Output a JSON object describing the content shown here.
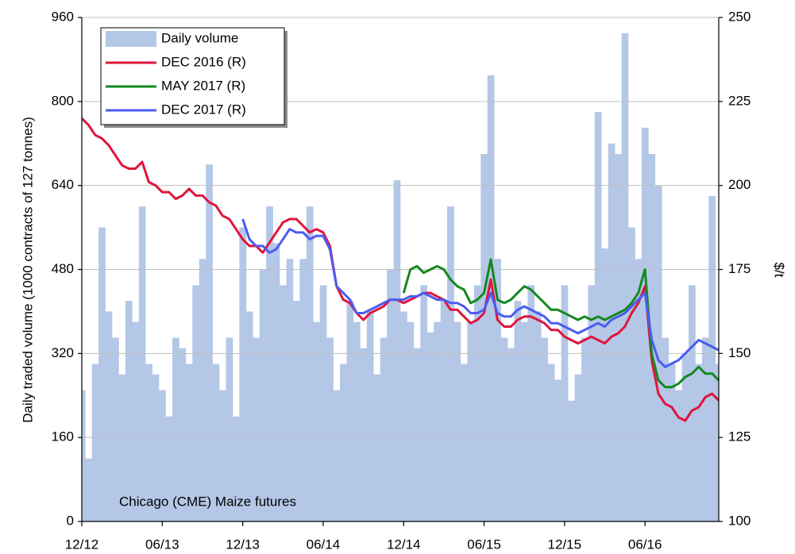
{
  "chart_data": {
    "type": "combo",
    "y_label": "Daily traded volume (1000 contracts of 127 tonnes)",
    "y2_label": "$/t",
    "annotation": "Chicago (CME)  Maize futures",
    "categories": [
      "12/12",
      null,
      null,
      null,
      null,
      null,
      null,
      null,
      null,
      null,
      null,
      null,
      "06/13",
      null,
      null,
      null,
      null,
      null,
      null,
      null,
      null,
      null,
      null,
      null,
      "12/13",
      null,
      null,
      null,
      null,
      null,
      null,
      null,
      null,
      null,
      null,
      null,
      "06/14",
      null,
      null,
      null,
      null,
      null,
      null,
      null,
      null,
      null,
      null,
      null,
      "12/14",
      null,
      null,
      null,
      null,
      null,
      null,
      null,
      null,
      null,
      null,
      null,
      "06/15",
      null,
      null,
      null,
      null,
      null,
      null,
      null,
      null,
      null,
      null,
      null,
      "12/15",
      null,
      null,
      null,
      null,
      null,
      null,
      null,
      null,
      null,
      null,
      null,
      "06/16",
      null,
      null,
      null,
      null,
      null,
      null,
      null,
      null,
      null,
      null,
      null
    ],
    "ylim": [
      0,
      960
    ],
    "yticks": [
      0,
      160,
      320,
      480,
      640,
      800,
      960
    ],
    "y2lim": [
      100,
      250
    ],
    "y2ticks": [
      100,
      125,
      150,
      175,
      200,
      225,
      250
    ],
    "grid": true,
    "legend": "top-left",
    "series": [
      {
        "name": "Daily volume",
        "type": "bar",
        "color": "#b4c7e7",
        "axis": "y",
        "values": [
          250,
          120,
          300,
          560,
          400,
          350,
          280,
          420,
          380,
          600,
          300,
          280,
          250,
          200,
          350,
          330,
          300,
          450,
          500,
          680,
          300,
          250,
          350,
          200,
          560,
          400,
          350,
          480,
          600,
          530,
          450,
          500,
          420,
          500,
          600,
          380,
          450,
          350,
          250,
          300,
          420,
          380,
          330,
          400,
          280,
          350,
          480,
          650,
          400,
          380,
          330,
          450,
          360,
          380,
          420,
          600,
          380,
          300,
          380,
          450,
          700,
          850,
          500,
          350,
          330,
          420,
          380,
          450,
          400,
          350,
          300,
          270,
          450,
          230,
          280,
          350,
          450,
          780,
          520,
          720,
          700,
          930,
          560,
          500,
          750,
          700,
          640,
          350,
          300,
          250,
          320,
          450,
          300,
          350,
          620,
          300
        ]
      },
      {
        "name": "DEC 2016 (R)",
        "type": "line",
        "color": "#e0143c",
        "axis": "y2",
        "values": [
          220,
          218,
          215,
          214,
          212,
          209,
          206,
          205,
          205,
          207,
          201,
          200,
          198,
          198,
          196,
          197,
          199,
          197,
          197,
          195,
          194,
          191,
          190,
          187,
          184,
          182,
          182,
          180,
          183,
          186,
          189,
          190,
          190,
          188,
          186,
          187,
          186,
          182,
          170,
          166,
          165,
          162,
          160,
          162,
          163,
          164,
          166,
          166,
          165,
          166,
          167,
          168,
          168,
          167,
          166,
          163,
          163,
          161,
          159,
          160,
          162,
          172,
          160,
          158,
          158,
          160,
          161,
          161,
          160,
          159,
          157,
          157,
          155,
          154,
          153,
          154,
          155,
          154,
          153,
          155,
          156,
          158,
          162,
          165,
          170,
          148,
          138,
          135,
          134,
          131,
          130,
          133,
          134,
          137,
          138,
          136
        ]
      },
      {
        "name": "MAY 2017 (R)",
        "type": "line",
        "color": "#13891e",
        "axis": "y2",
        "values": [
          null,
          null,
          null,
          null,
          null,
          null,
          null,
          null,
          null,
          null,
          null,
          null,
          null,
          null,
          null,
          null,
          null,
          null,
          null,
          null,
          null,
          null,
          null,
          null,
          null,
          null,
          null,
          null,
          null,
          null,
          null,
          null,
          null,
          null,
          null,
          null,
          null,
          null,
          null,
          null,
          null,
          null,
          null,
          null,
          null,
          null,
          null,
          null,
          168,
          175,
          176,
          174,
          175,
          176,
          175,
          172,
          170,
          169,
          165,
          166,
          168,
          178,
          166,
          165,
          166,
          168,
          170,
          169,
          167,
          165,
          163,
          163,
          162,
          161,
          160,
          161,
          160,
          161,
          160,
          161,
          162,
          163,
          165,
          168,
          175,
          150,
          142,
          140,
          140,
          141,
          143,
          144,
          146,
          144,
          144,
          142
        ]
      },
      {
        "name": "DEC 2017 (R)",
        "type": "line",
        "color": "#4a5cf0",
        "axis": "y2",
        "values": [
          null,
          null,
          null,
          null,
          null,
          null,
          null,
          null,
          null,
          null,
          null,
          null,
          null,
          null,
          null,
          null,
          null,
          null,
          null,
          null,
          null,
          null,
          null,
          null,
          190,
          184,
          182,
          182,
          180,
          181,
          184,
          187,
          186,
          186,
          184,
          185,
          185,
          181,
          170,
          168,
          166,
          162,
          162,
          163,
          164,
          165,
          166,
          166,
          166,
          167,
          167,
          168,
          167,
          166,
          166,
          165,
          165,
          164,
          162,
          162,
          163,
          168,
          162,
          161,
          161,
          163,
          164,
          163,
          162,
          161,
          159,
          159,
          158,
          157,
          156,
          157,
          158,
          159,
          158,
          160,
          161,
          162,
          164,
          166,
          168,
          154,
          148,
          146,
          147,
          148,
          150,
          152,
          154,
          153,
          152,
          151
        ]
      }
    ]
  }
}
